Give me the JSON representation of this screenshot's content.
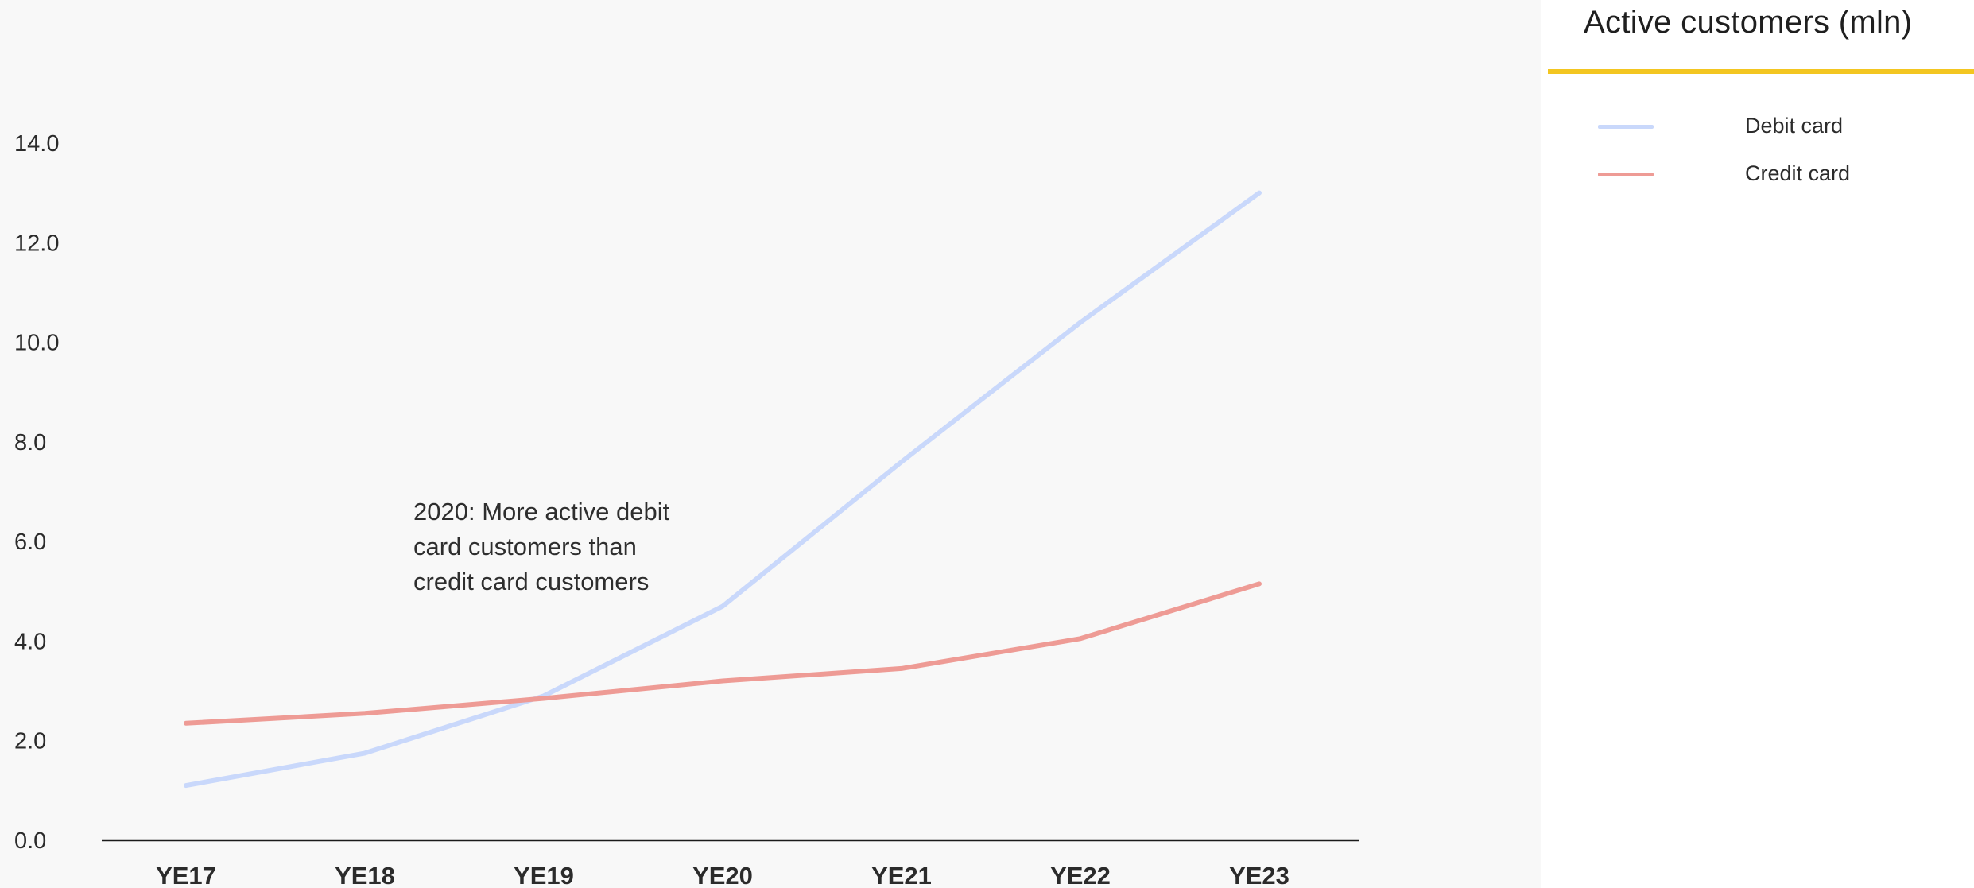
{
  "chart_data": {
    "type": "line",
    "categories": [
      "YE17",
      "YE18",
      "YE19",
      "YE20",
      "YE21",
      "YE22",
      "YE23"
    ],
    "series": [
      {
        "name": "Debit card",
        "color": "#c9d8fb",
        "values": [
          1.1,
          1.75,
          2.9,
          4.7,
          7.6,
          10.4,
          13.0
        ]
      },
      {
        "name": "Credit card",
        "color": "#ee9b95",
        "values": [
          2.35,
          2.55,
          2.85,
          3.2,
          3.45,
          4.05,
          5.15
        ]
      }
    ],
    "title": "Active customers (mln)",
    "xlabel": "",
    "ylabel": "",
    "ylim": [
      0,
      14
    ],
    "yticks": [
      "0.0",
      "2.0",
      "4.0",
      "6.0",
      "8.0",
      "10.0",
      "12.0",
      "14.0"
    ],
    "grid": false,
    "legend": "right",
    "annotation": "2020: More active debit card customers than credit card customers"
  }
}
